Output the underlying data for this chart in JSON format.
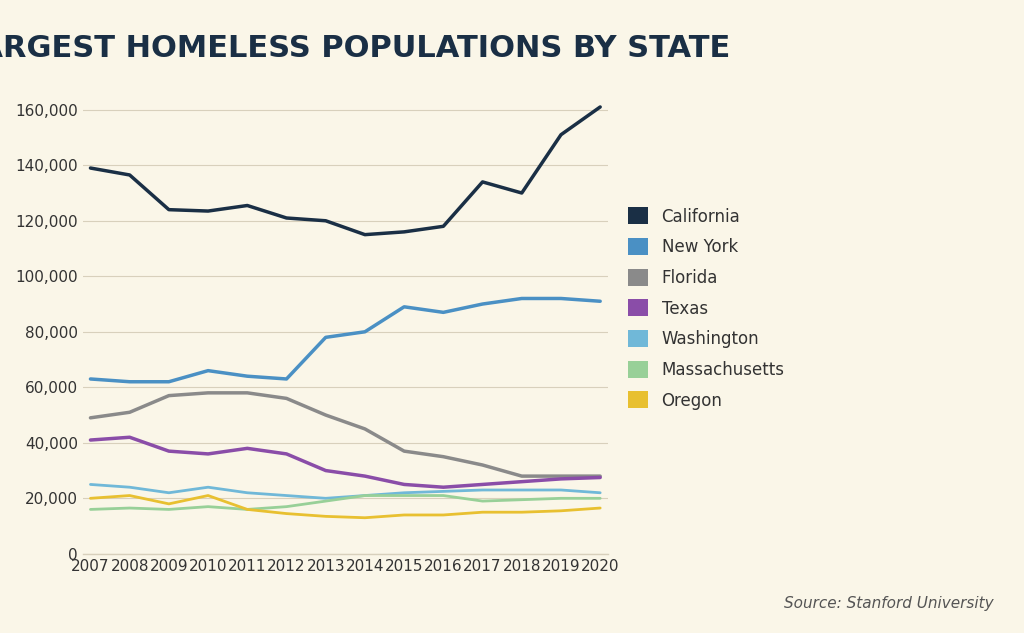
{
  "title": "LARGEST HOMELESS POPULATIONS BY STATE",
  "background_color": "#faf6e8",
  "source_text": "Source: Stanford University",
  "years": [
    2007,
    2008,
    2009,
    2010,
    2011,
    2012,
    2013,
    2014,
    2015,
    2016,
    2017,
    2018,
    2019,
    2020
  ],
  "series": [
    {
      "label": "California",
      "color": "#1a2f45",
      "linewidth": 2.5,
      "values": [
        139000,
        136500,
        124000,
        123500,
        125500,
        121000,
        120000,
        115000,
        116000,
        118000,
        134000,
        130000,
        151000,
        161000
      ]
    },
    {
      "label": "New York",
      "color": "#4a90c4",
      "linewidth": 2.5,
      "values": [
        63000,
        62000,
        62000,
        66000,
        64000,
        63000,
        78000,
        80000,
        89000,
        87000,
        90000,
        92000,
        92000,
        91000
      ]
    },
    {
      "label": "Florida",
      "color": "#8a8a8a",
      "linewidth": 2.5,
      "values": [
        49000,
        51000,
        57000,
        58000,
        58000,
        56000,
        50000,
        45000,
        37000,
        35000,
        32000,
        28000,
        28000,
        28000
      ]
    },
    {
      "label": "Texas",
      "color": "#8a4da8",
      "linewidth": 2.5,
      "values": [
        41000,
        42000,
        37000,
        36000,
        38000,
        36000,
        30000,
        28000,
        25000,
        24000,
        25000,
        26000,
        27000,
        27500
      ]
    },
    {
      "label": "Washington",
      "color": "#70b8d8",
      "linewidth": 2.0,
      "values": [
        25000,
        24000,
        22000,
        24000,
        22000,
        21000,
        20000,
        21000,
        22000,
        22500,
        23000,
        23000,
        23000,
        22000
      ]
    },
    {
      "label": "Massachusetts",
      "color": "#98d098",
      "linewidth": 2.0,
      "values": [
        16000,
        16500,
        16000,
        17000,
        16000,
        17000,
        19000,
        21000,
        21000,
        21000,
        19000,
        19500,
        20000,
        20000
      ]
    },
    {
      "label": "Oregon",
      "color": "#e8c030",
      "linewidth": 2.0,
      "values": [
        20000,
        21000,
        18000,
        21000,
        16000,
        14500,
        13500,
        13000,
        14000,
        14000,
        15000,
        15000,
        15500,
        16500
      ]
    }
  ],
  "ylim": [
    0,
    170000
  ],
  "yticks": [
    0,
    20000,
    40000,
    60000,
    80000,
    100000,
    120000,
    140000,
    160000
  ],
  "xlim_min": 2007,
  "xlim_max": 2020,
  "title_fontsize": 22,
  "tick_fontsize": 11,
  "legend_fontsize": 12,
  "title_color": "#1a2f45",
  "tick_color": "#333333",
  "grid_color": "#d8d0bc",
  "source_fontsize": 11
}
